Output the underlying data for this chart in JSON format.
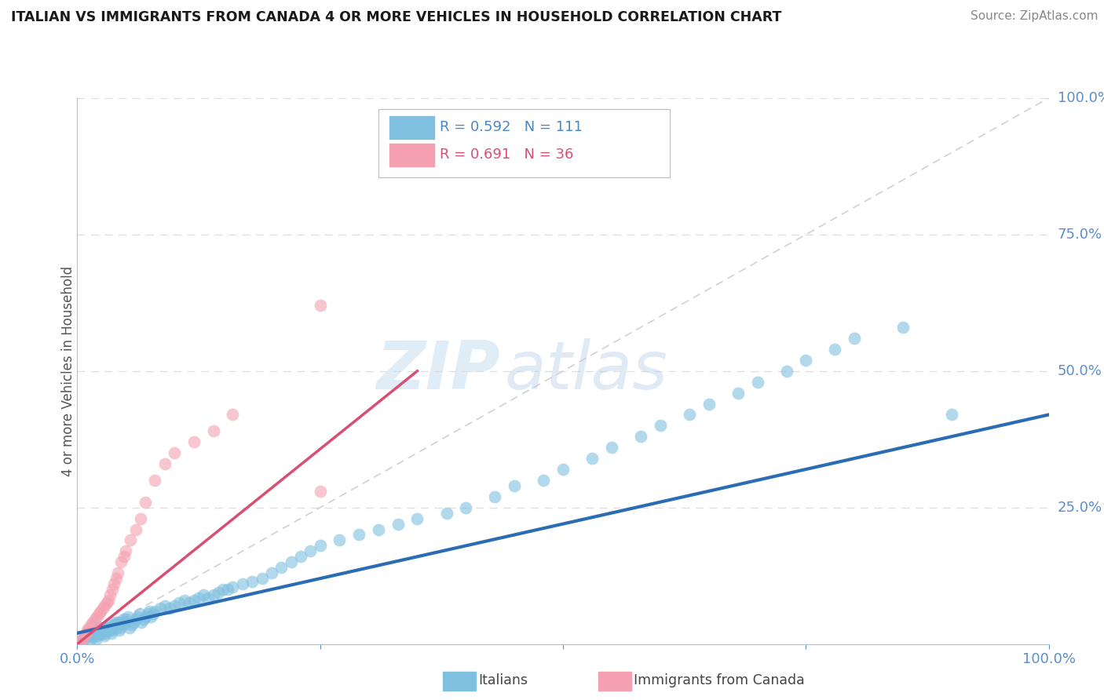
{
  "title": "ITALIAN VS IMMIGRANTS FROM CANADA 4 OR MORE VEHICLES IN HOUSEHOLD CORRELATION CHART",
  "source": "Source: ZipAtlas.com",
  "ylabel": "4 or more Vehicles in Household",
  "legend_label1": "Italians",
  "legend_label2": "Immigrants from Canada",
  "r1": 0.592,
  "n1": 111,
  "r2": 0.691,
  "n2": 36,
  "color_blue": "#7fbfdf",
  "color_pink": "#f4a0b0",
  "color_line_blue": "#2a6db5",
  "color_line_pink": "#d94f72",
  "color_diagonal": "#cccccc",
  "watermark_zip": "ZIP",
  "watermark_atlas": "atlas",
  "xlim": [
    0.0,
    1.0
  ],
  "ylim": [
    0.0,
    1.0
  ],
  "italian_x": [
    0.003,
    0.005,
    0.007,
    0.008,
    0.009,
    0.01,
    0.01,
    0.012,
    0.013,
    0.015,
    0.016,
    0.017,
    0.018,
    0.019,
    0.02,
    0.02,
    0.021,
    0.022,
    0.023,
    0.024,
    0.025,
    0.026,
    0.027,
    0.028,
    0.029,
    0.03,
    0.031,
    0.032,
    0.033,
    0.034,
    0.035,
    0.036,
    0.037,
    0.038,
    0.039,
    0.04,
    0.041,
    0.042,
    0.043,
    0.044,
    0.045,
    0.046,
    0.047,
    0.048,
    0.049,
    0.05,
    0.052,
    0.054,
    0.056,
    0.058,
    0.06,
    0.062,
    0.064,
    0.066,
    0.068,
    0.07,
    0.072,
    0.074,
    0.076,
    0.078,
    0.08,
    0.085,
    0.09,
    0.095,
    0.1,
    0.105,
    0.11,
    0.115,
    0.12,
    0.125,
    0.13,
    0.135,
    0.14,
    0.145,
    0.15,
    0.155,
    0.16,
    0.17,
    0.18,
    0.19,
    0.2,
    0.21,
    0.22,
    0.23,
    0.24,
    0.25,
    0.27,
    0.29,
    0.31,
    0.33,
    0.35,
    0.38,
    0.4,
    0.43,
    0.45,
    0.48,
    0.5,
    0.53,
    0.55,
    0.58,
    0.6,
    0.63,
    0.65,
    0.68,
    0.7,
    0.73,
    0.75,
    0.78,
    0.8,
    0.85,
    0.9
  ],
  "italian_y": [
    0.005,
    0.008,
    0.01,
    0.012,
    0.015,
    0.018,
    0.02,
    0.022,
    0.008,
    0.012,
    0.015,
    0.018,
    0.02,
    0.025,
    0.01,
    0.015,
    0.02,
    0.025,
    0.03,
    0.018,
    0.022,
    0.025,
    0.03,
    0.015,
    0.02,
    0.025,
    0.03,
    0.035,
    0.025,
    0.03,
    0.02,
    0.025,
    0.03,
    0.035,
    0.04,
    0.03,
    0.035,
    0.04,
    0.025,
    0.03,
    0.035,
    0.04,
    0.045,
    0.035,
    0.04,
    0.045,
    0.05,
    0.03,
    0.035,
    0.04,
    0.045,
    0.05,
    0.055,
    0.04,
    0.045,
    0.05,
    0.055,
    0.06,
    0.05,
    0.055,
    0.06,
    0.065,
    0.07,
    0.065,
    0.07,
    0.075,
    0.08,
    0.075,
    0.08,
    0.085,
    0.09,
    0.085,
    0.09,
    0.095,
    0.1,
    0.1,
    0.105,
    0.11,
    0.115,
    0.12,
    0.13,
    0.14,
    0.15,
    0.16,
    0.17,
    0.18,
    0.19,
    0.2,
    0.21,
    0.22,
    0.23,
    0.24,
    0.25,
    0.27,
    0.29,
    0.3,
    0.32,
    0.34,
    0.36,
    0.38,
    0.4,
    0.42,
    0.44,
    0.46,
    0.48,
    0.5,
    0.52,
    0.54,
    0.56,
    0.58,
    0.42
  ],
  "canada_x": [
    0.003,
    0.005,
    0.007,
    0.009,
    0.01,
    0.012,
    0.014,
    0.016,
    0.018,
    0.02,
    0.022,
    0.024,
    0.026,
    0.028,
    0.03,
    0.032,
    0.034,
    0.036,
    0.038,
    0.04,
    0.042,
    0.045,
    0.048,
    0.05,
    0.055,
    0.06,
    0.065,
    0.07,
    0.08,
    0.09,
    0.1,
    0.12,
    0.14,
    0.16,
    0.25,
    0.25
  ],
  "canada_y": [
    0.005,
    0.01,
    0.015,
    0.02,
    0.025,
    0.03,
    0.035,
    0.04,
    0.045,
    0.05,
    0.055,
    0.06,
    0.065,
    0.07,
    0.075,
    0.08,
    0.09,
    0.1,
    0.11,
    0.12,
    0.13,
    0.15,
    0.16,
    0.17,
    0.19,
    0.21,
    0.23,
    0.26,
    0.3,
    0.33,
    0.35,
    0.37,
    0.39,
    0.42,
    0.62,
    0.28
  ],
  "blue_line_x0": 0.0,
  "blue_line_y0": 0.02,
  "blue_line_x1": 1.0,
  "blue_line_y1": 0.42,
  "pink_line_x0": 0.0,
  "pink_line_y0": 0.0,
  "pink_line_x1": 0.35,
  "pink_line_y1": 0.5
}
